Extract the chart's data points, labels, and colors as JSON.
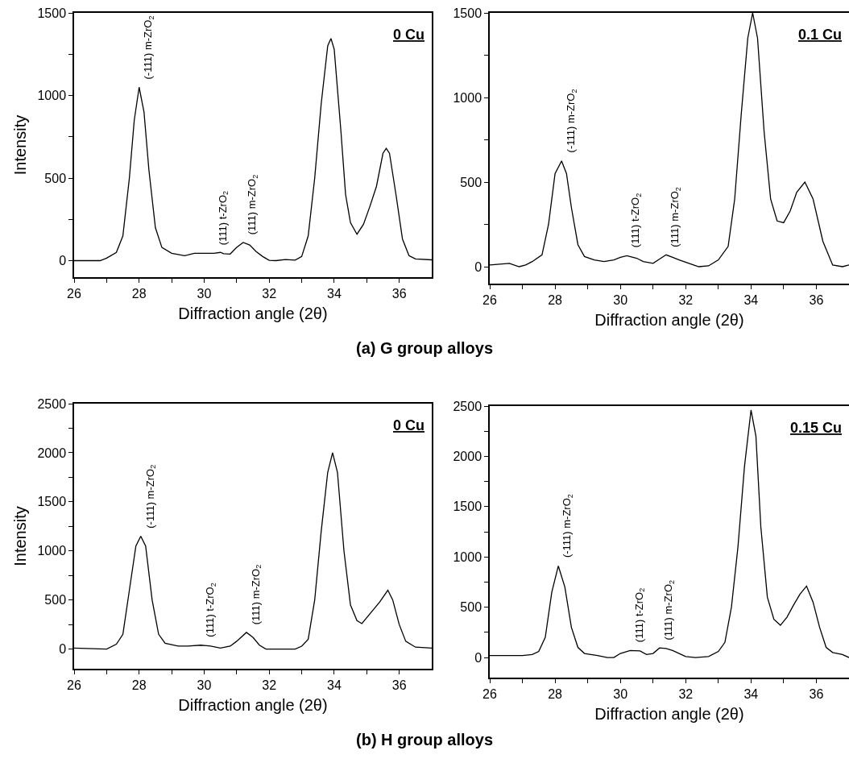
{
  "chart_data": [
    {
      "type": "line",
      "subtitle": "0 Cu",
      "xlabel": "Diffraction angle (2θ)",
      "ylabel": "Intensity",
      "xlim": [
        26,
        37
      ],
      "ylim": [
        -100,
        1500
      ],
      "xticks": [
        26,
        {
          "value": 27,
          "label": null
        },
        28,
        {
          "value": 29,
          "label": null
        },
        30,
        {
          "value": 31,
          "label": null
        },
        32,
        {
          "value": 33,
          "label": null
        },
        34,
        {
          "value": 35,
          "label": null
        },
        36
      ],
      "yticks": [
        0,
        {
          "value": 250,
          "label": null
        },
        500,
        {
          "value": 750,
          "label": null
        },
        1000,
        {
          "value": 1250,
          "label": null
        },
        1500
      ],
      "series": [
        {
          "color": "#000000",
          "x": [
            26.0,
            26.8,
            27.0,
            27.3,
            27.5,
            27.7,
            27.85,
            28.0,
            28.15,
            28.3,
            28.5,
            28.7,
            29.0,
            29.4,
            29.7,
            30.0,
            30.3,
            30.5,
            30.6,
            30.8,
            31.0,
            31.2,
            31.4,
            31.6,
            31.8,
            32.0,
            32.2,
            32.5,
            32.8,
            33.0,
            33.2,
            33.4,
            33.6,
            33.8,
            33.9,
            34.0,
            34.2,
            34.35,
            34.5,
            34.7,
            34.9,
            35.1,
            35.3,
            35.5,
            35.6,
            35.7,
            35.9,
            36.1,
            36.3,
            36.5,
            37.0
          ],
          "values": [
            0,
            0,
            15,
            50,
            150,
            500,
            850,
            1050,
            900,
            550,
            200,
            80,
            45,
            30,
            45,
            45,
            45,
            50,
            42,
            40,
            80,
            110,
            95,
            55,
            25,
            2,
            0,
            7,
            3,
            25,
            150,
            500,
            950,
            1300,
            1345,
            1280,
            800,
            400,
            230,
            160,
            220,
            330,
            450,
            650,
            680,
            650,
            400,
            130,
            30,
            10,
            5
          ]
        }
      ],
      "annotations": [
        {
          "text": "(-111) m-ZrO$_{2}$",
          "x": 28.0,
          "y": 1050
        },
        {
          "text": "(111) t-ZrO$_{2}$",
          "x": 30.3,
          "y": 45
        },
        {
          "text": "(111) m-ZrO$_{2}$",
          "x": 31.2,
          "y": 110
        },
        "(a) G group alloys"
      ]
    },
    {
      "type": "line",
      "subtitle": "0.1 Cu",
      "xlabel": "Diffraction angle (2θ)",
      "xlim": [
        26,
        37
      ],
      "ylim": [
        -100,
        1500
      ],
      "xticks": [
        26,
        {
          "value": 27,
          "label": null
        },
        28,
        {
          "value": 29,
          "label": null
        },
        30,
        {
          "value": 31,
          "label": null
        },
        32,
        {
          "value": 33,
          "label": null
        },
        34,
        {
          "value": 35,
          "label": null
        },
        36
      ],
      "yticks": [
        0,
        {
          "value": 250,
          "label": null
        },
        500,
        {
          "value": 750,
          "label": null
        },
        1000,
        {
          "value": 1250,
          "label": null
        },
        1500
      ],
      "series": [
        {
          "color": "#000000",
          "x": [
            26.0,
            26.3,
            26.6,
            26.9,
            27.1,
            27.3,
            27.6,
            27.8,
            28.0,
            28.2,
            28.35,
            28.5,
            28.7,
            28.9,
            29.2,
            29.5,
            29.8,
            30.0,
            30.2,
            30.5,
            30.7,
            31.0,
            31.2,
            31.4,
            31.6,
            31.8,
            32.1,
            32.4,
            32.7,
            33.0,
            33.3,
            33.5,
            33.7,
            33.9,
            34.05,
            34.2,
            34.4,
            34.6,
            34.8,
            35.0,
            35.2,
            35.4,
            35.65,
            35.9,
            36.2,
            36.5,
            36.8,
            37.0
          ],
          "values": [
            10,
            15,
            20,
            0,
            10,
            30,
            70,
            250,
            550,
            625,
            550,
            350,
            130,
            60,
            40,
            30,
            40,
            55,
            65,
            50,
            30,
            20,
            45,
            70,
            55,
            40,
            20,
            0,
            5,
            40,
            120,
            400,
            900,
            1350,
            1500,
            1350,
            800,
            400,
            270,
            260,
            330,
            440,
            500,
            400,
            150,
            10,
            0,
            10
          ]
        }
      ],
      "annotations": [
        {
          "text": "(-111) m-ZrO$_{2}$",
          "x": 28.2,
          "y": 625
        },
        {
          "text": "(111) t-ZrO$_{2}$",
          "x": 30.2,
          "y": 65
        },
        {
          "text": "(111) m-ZrO$_{2}$",
          "x": 31.4,
          "y": 70
        }
      ]
    },
    {
      "type": "line",
      "subtitle": "0 Cu",
      "xlabel": "Diffraction angle (2θ)",
      "ylabel": "Intensity",
      "xlim": [
        26,
        37
      ],
      "ylim": [
        -200,
        2500
      ],
      "xticks": [
        26,
        {
          "value": 27,
          "label": null
        },
        28,
        {
          "value": 29,
          "label": null
        },
        30,
        {
          "value": 31,
          "label": null
        },
        32,
        {
          "value": 33,
          "label": null
        },
        34,
        {
          "value": 35,
          "label": null
        },
        36
      ],
      "yticks": [
        0,
        {
          "value": 250,
          "label": null
        },
        500,
        {
          "value": 750,
          "label": null
        },
        1000,
        {
          "value": 1250,
          "label": null
        },
        1500,
        {
          "value": 1750,
          "label": null
        },
        2000,
        {
          "value": 2250,
          "label": null
        },
        2500
      ],
      "series": [
        {
          "color": "#000000",
          "x": [
            26.0,
            27.0,
            27.3,
            27.5,
            27.7,
            27.9,
            28.05,
            28.2,
            28.4,
            28.6,
            28.8,
            29.2,
            29.5,
            29.9,
            30.2,
            30.5,
            30.8,
            31.0,
            31.3,
            31.5,
            31.7,
            31.9,
            32.3,
            32.8,
            33.0,
            33.2,
            33.4,
            33.6,
            33.8,
            33.95,
            34.1,
            34.3,
            34.5,
            34.7,
            34.85,
            35.0,
            35.2,
            35.4,
            35.65,
            35.8,
            36.0,
            36.2,
            36.5,
            37.0
          ],
          "values": [
            10,
            0,
            50,
            150,
            600,
            1050,
            1150,
            1050,
            500,
            150,
            60,
            30,
            30,
            40,
            30,
            10,
            30,
            80,
            170,
            120,
            40,
            0,
            0,
            0,
            30,
            100,
            500,
            1200,
            1800,
            2000,
            1800,
            1000,
            450,
            290,
            260,
            320,
            400,
            480,
            600,
            500,
            250,
            80,
            20,
            10
          ]
        }
      ],
      "annotations": [
        {
          "text": "(-111) m-ZrO$_{2}$",
          "x": 28.05,
          "y": 1150
        },
        {
          "text": "(111) t-ZrO$_{2}$",
          "x": 29.9,
          "y": 40
        },
        {
          "text": "(111) m-ZrO$_{2}$",
          "x": 31.3,
          "y": 170
        },
        "(b) H group alloys"
      ]
    },
    {
      "type": "line",
      "subtitle": "0.15 Cu",
      "xlabel": "Diffraction angle (2θ)",
      "xlim": [
        26,
        37
      ],
      "ylim": [
        -200,
        2500
      ],
      "xticks": [
        26,
        {
          "value": 27,
          "label": null
        },
        28,
        {
          "value": 29,
          "label": null
        },
        30,
        {
          "value": 31,
          "label": null
        },
        32,
        {
          "value": 33,
          "label": null
        },
        34,
        {
          "value": 35,
          "label": null
        },
        36
      ],
      "yticks": [
        0,
        {
          "value": 250,
          "label": null
        },
        500,
        {
          "value": 750,
          "label": null
        },
        1000,
        {
          "value": 1250,
          "label": null
        },
        1500,
        {
          "value": 1750,
          "label": null
        },
        2000,
        {
          "value": 2250,
          "label": null
        },
        2500
      ],
      "series": [
        {
          "color": "#000000",
          "x": [
            26.0,
            27.0,
            27.3,
            27.5,
            27.7,
            27.9,
            28.1,
            28.3,
            28.5,
            28.7,
            28.9,
            29.3,
            29.6,
            29.8,
            30.0,
            30.3,
            30.6,
            30.8,
            31.0,
            31.2,
            31.4,
            31.6,
            31.8,
            32.0,
            32.3,
            32.7,
            33.0,
            33.2,
            33.4,
            33.6,
            33.8,
            34.0,
            34.15,
            34.3,
            34.5,
            34.7,
            34.9,
            35.1,
            35.3,
            35.5,
            35.7,
            35.9,
            36.1,
            36.3,
            36.5,
            36.8,
            37.0
          ],
          "values": [
            20,
            20,
            30,
            60,
            200,
            650,
            910,
            700,
            300,
            100,
            40,
            20,
            0,
            0,
            40,
            70,
            65,
            30,
            40,
            95,
            90,
            70,
            40,
            10,
            0,
            10,
            60,
            150,
            500,
            1100,
            1900,
            2460,
            2200,
            1300,
            600,
            380,
            320,
            400,
            520,
            630,
            710,
            550,
            300,
            100,
            50,
            30,
            0
          ]
        }
      ],
      "annotations": [
        {
          "text": "(-111) m-ZrO$_{2}$",
          "x": 28.1,
          "y": 910
        },
        {
          "text": "(111) t-ZrO$_{2}$",
          "x": 30.3,
          "y": 70
        },
        {
          "text": "(111) m-ZrO$_{2}$",
          "x": 31.2,
          "y": 95
        }
      ]
    }
  ]
}
